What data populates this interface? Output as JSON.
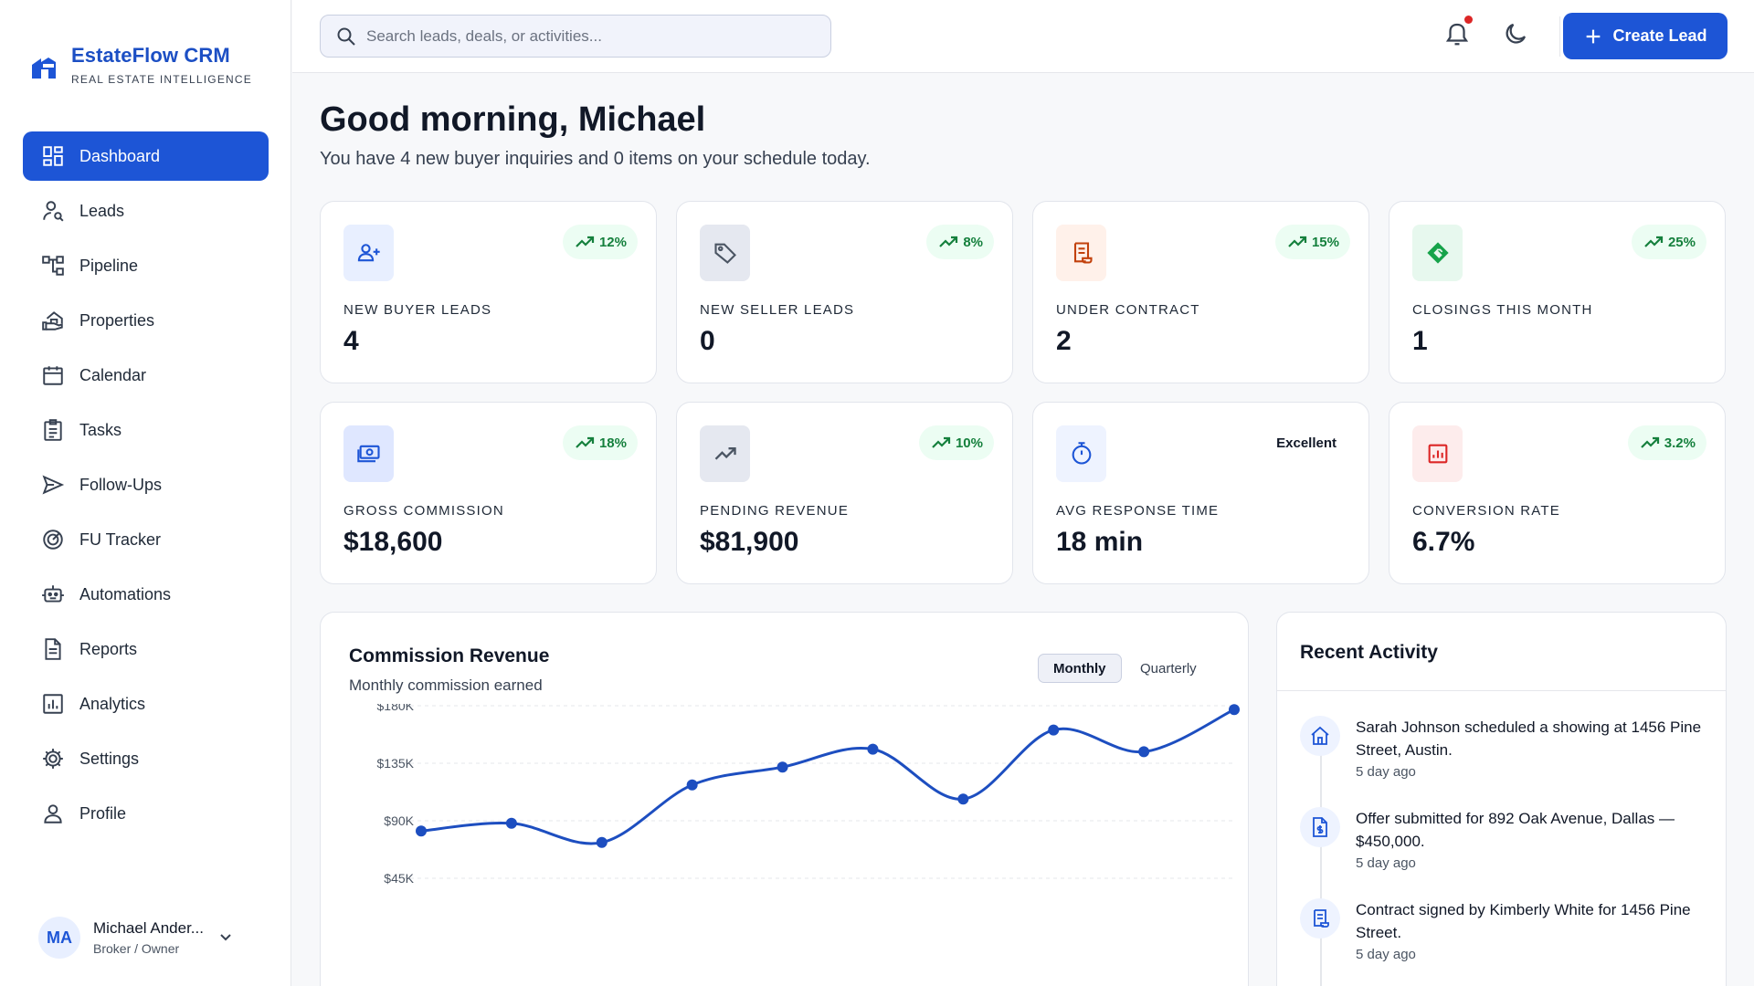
{
  "brand": {
    "name": "EstateFlow CRM",
    "tagline": "REAL ESTATE INTELLIGENCE",
    "accent": "#1d55d6"
  },
  "sidebar": {
    "items": [
      {
        "label": "Dashboard",
        "icon": "dashboard-icon",
        "active": true
      },
      {
        "label": "Leads",
        "icon": "user-search-icon"
      },
      {
        "label": "Pipeline",
        "icon": "pipeline-icon"
      },
      {
        "label": "Properties",
        "icon": "house-hand-icon"
      },
      {
        "label": "Calendar",
        "icon": "calendar-icon"
      },
      {
        "label": "Tasks",
        "icon": "clipboard-icon"
      },
      {
        "label": "Follow-Ups",
        "icon": "send-icon"
      },
      {
        "label": "FU Tracker",
        "icon": "target-icon"
      },
      {
        "label": "Automations",
        "icon": "robot-icon"
      },
      {
        "label": "Reports",
        "icon": "document-icon"
      },
      {
        "label": "Analytics",
        "icon": "bar-chart-icon"
      },
      {
        "label": "Settings",
        "icon": "gear-icon"
      },
      {
        "label": "Profile",
        "icon": "person-icon"
      }
    ]
  },
  "user": {
    "initials": "MA",
    "name": "Michael Ander...",
    "role": "Broker / Owner"
  },
  "topbar": {
    "search_placeholder": "Search leads, deals, or activities...",
    "create_label": "Create Lead",
    "notification_dot_color": "#dc2626"
  },
  "greeting": {
    "title": "Good morning, Michael",
    "subtitle": "You have 4 new buyer inquiries and 0 items on your schedule today."
  },
  "stats": [
    {
      "label": "NEW BUYER LEADS",
      "value": "4",
      "trend": "12%",
      "icon": "user-plus-icon",
      "icon_bg": "#e8efff",
      "icon_color": "#1d55d6"
    },
    {
      "label": "NEW SELLER LEADS",
      "value": "0",
      "trend": "8%",
      "icon": "tag-icon",
      "icon_bg": "#e5e8f0",
      "icon_color": "#4b5563"
    },
    {
      "label": "UNDER CONTRACT",
      "value": "2",
      "trend": "15%",
      "icon": "contract-icon",
      "icon_bg": "#fff1ea",
      "icon_color": "#c2410c"
    },
    {
      "label": "CLOSINGS THIS MONTH",
      "value": "1",
      "trend": "25%",
      "icon": "handshake-icon",
      "icon_bg": "#e7f8ee",
      "icon_color": "#16a34a"
    },
    {
      "label": "GROSS COMMISSION",
      "value": "$18,600",
      "trend": "18%",
      "icon": "money-icon",
      "icon_bg": "#dfe7ff",
      "icon_color": "#1d55d6"
    },
    {
      "label": "PENDING REVENUE",
      "value": "$81,900",
      "trend": "10%",
      "icon": "trend-up-icon",
      "icon_bg": "#e5e8f0",
      "icon_color": "#4b5563"
    },
    {
      "label": "AVG RESPONSE TIME",
      "value": "18 min",
      "trend_text": "Excellent",
      "icon": "stopwatch-icon",
      "icon_bg": "#eef3ff",
      "icon_color": "#1d55d6"
    },
    {
      "label": "CONVERSION RATE",
      "value": "6.7%",
      "trend": "3.2%",
      "icon": "chart-box-icon",
      "icon_bg": "#fdecec",
      "icon_color": "#dc2626"
    }
  ],
  "chart": {
    "title": "Commission Revenue",
    "subtitle": "Monthly commission earned",
    "tabs": {
      "active": "Monthly",
      "inactive": "Quarterly"
    }
  },
  "chart_data": {
    "type": "line",
    "x": [
      1,
      2,
      3,
      4,
      5,
      6,
      7,
      8,
      9,
      10
    ],
    "values": [
      82000,
      88000,
      73000,
      118000,
      132000,
      146000,
      107000,
      161000,
      144000,
      177000
    ],
    "ytick_labels": [
      "$180K",
      "$135K",
      "$90K",
      "$45K"
    ],
    "yticks": [
      180000,
      135000,
      90000,
      45000
    ],
    "ylim": [
      0,
      180000
    ],
    "grid": true,
    "color": "#1d4ec0"
  },
  "activity": {
    "title": "Recent Activity",
    "items": [
      {
        "text": "Sarah Johnson scheduled a showing at 1456 Pine Street, Austin.",
        "time": "5 day ago",
        "icon": "home-icon"
      },
      {
        "text": "Offer submitted for 892 Oak Avenue, Dallas — $450,000.",
        "time": "5 day ago",
        "icon": "dollar-document-icon"
      },
      {
        "text": "Contract signed by Kimberly White for 1456 Pine Street.",
        "time": "5 day ago",
        "icon": "receipt-icon"
      }
    ]
  }
}
